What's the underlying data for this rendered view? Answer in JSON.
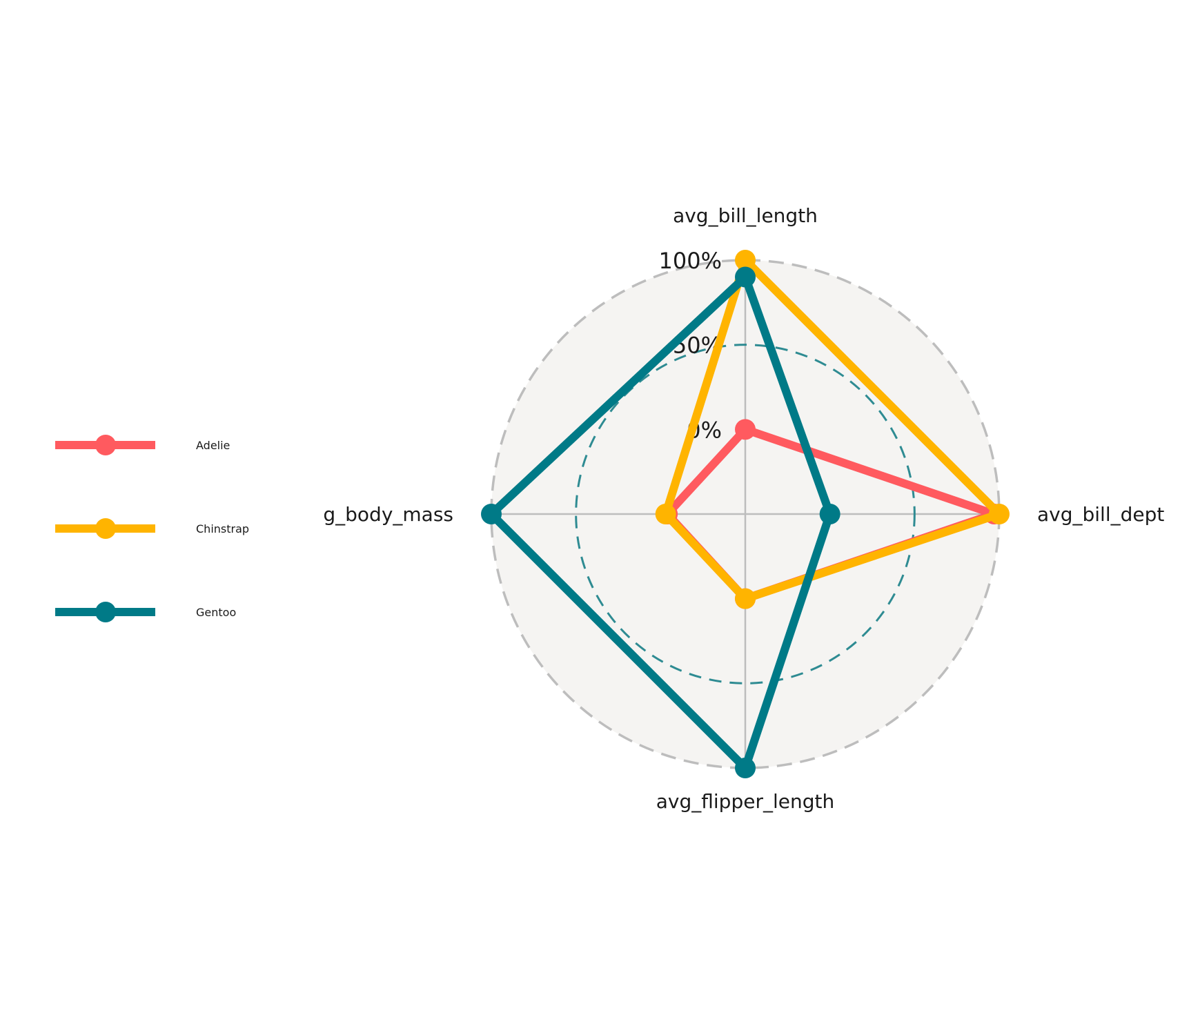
{
  "chart_data": {
    "type": "radar",
    "axes": [
      "avg_bill_length",
      "avg_bill_dept",
      "avg_flipper_length",
      "avg_body_mass"
    ],
    "grid_labels": [
      "0%",
      "50%",
      "100%"
    ],
    "range": [
      -0.5,
      1.0
    ],
    "series": [
      {
        "name": "Adelie",
        "color": "#FF5A5F",
        "values": [
          0.0,
          0.97,
          0.0,
          -0.04
        ]
      },
      {
        "name": "Chinstrap",
        "color": "#FFB400",
        "values": [
          1.0,
          1.0,
          0.0,
          -0.03
        ]
      },
      {
        "name": "Gentoo",
        "color": "#007A87",
        "values": [
          0.9,
          0.0,
          1.0,
          1.0
        ]
      }
    ],
    "legend_position": "left",
    "grid": true
  }
}
